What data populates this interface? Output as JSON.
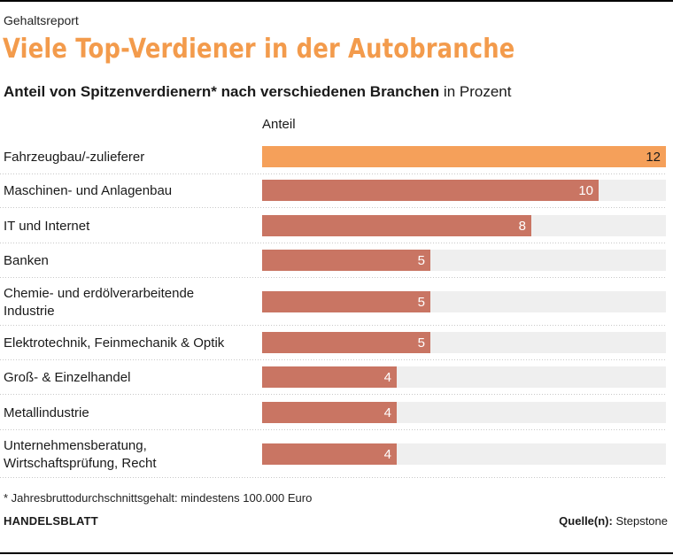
{
  "header": {
    "kicker": "Gehaltsreport",
    "title": "Viele Top-Verdiener in der Autobranche",
    "subtitle_strong": "Anteil von Spitzenverdienern* nach verschiedenen Branchen",
    "subtitle_unit": " in Prozent"
  },
  "colors": {
    "highlight": "#f5a05a",
    "bar": "#c97563",
    "track": "#efefef",
    "divider": "#c8c8c8"
  },
  "chart_data": {
    "type": "bar",
    "orientation": "horizontal",
    "column_header": "Anteil",
    "categories": [
      "Fahrzeugbau/-zulieferer",
      "Maschinen- und Anlagenbau",
      "IT und Internet",
      "Banken",
      "Chemie- und erdölverarbeitende Industrie",
      "Elektrotechnik, Feinmechanik & Optik",
      "Groß- & Einzelhandel",
      "Metallindustrie",
      "Unternehmensberatung, Wirtschaftsprüfung, Recht"
    ],
    "category_lines": [
      [
        "Fahrzeugbau/-zulieferer"
      ],
      [
        "Maschinen- und Anlagenbau"
      ],
      [
        "IT und Internet"
      ],
      [
        "Banken"
      ],
      [
        "Chemie- und erdölverarbeitende",
        "Industrie"
      ],
      [
        "Elektrotechnik, Feinmechanik & Optik"
      ],
      [
        "Groß- & Einzelhandel"
      ],
      [
        "Metallindustrie"
      ],
      [
        "Unternehmensberatung,",
        "Wirtschaftsprüfung, Recht"
      ]
    ],
    "values": [
      12,
      10,
      8,
      5,
      5,
      5,
      4,
      4,
      4
    ],
    "highlight_index": 0,
    "xlim": [
      0,
      12
    ]
  },
  "footer": {
    "footnote": "* Jahresbruttodurchschnittsgehalt: mindestens 100.000 Euro",
    "brand": "HANDELSBLATT",
    "source_label": "Quelle(n):",
    "source_value": " Stepstone"
  }
}
